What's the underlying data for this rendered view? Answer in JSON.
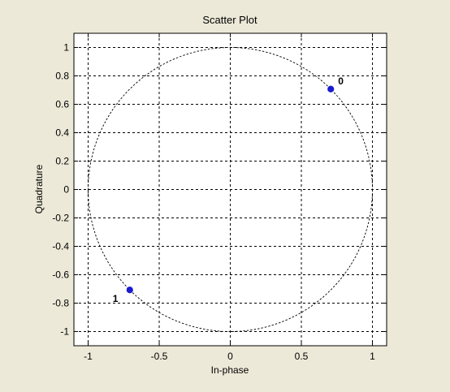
{
  "chart_data": {
    "type": "scatter",
    "title": "Scatter Plot",
    "xlabel": "In-phase",
    "ylabel": "Quadrature",
    "xlim": [
      -1.1,
      1.1
    ],
    "ylim": [
      -1.1,
      1.1
    ],
    "xticks": [
      -1,
      -0.5,
      0,
      0.5,
      1
    ],
    "xtick_labels": [
      "-1",
      "-0.5",
      "0",
      "0.5",
      "1"
    ],
    "yticks": [
      1,
      0.8,
      0.6,
      0.4,
      0.2,
      0,
      -0.2,
      -0.4,
      -0.6,
      -0.8,
      -1
    ],
    "ytick_labels": [
      "1",
      "0.8",
      "0.6",
      "0.4",
      "0.2",
      "0",
      "-0.2",
      "-0.4",
      "-0.6",
      "-0.8",
      "-1"
    ],
    "grid": true,
    "reference_circle": {
      "center": [
        0,
        0
      ],
      "radius": 1
    },
    "points": [
      {
        "x": 0.707,
        "y": 0.707,
        "label": "0"
      },
      {
        "x": -0.707,
        "y": -0.707,
        "label": "1"
      }
    ],
    "colors": {
      "background": "#ece9d8",
      "axes": "#ffffff",
      "marker": "#1a1ad0"
    }
  }
}
